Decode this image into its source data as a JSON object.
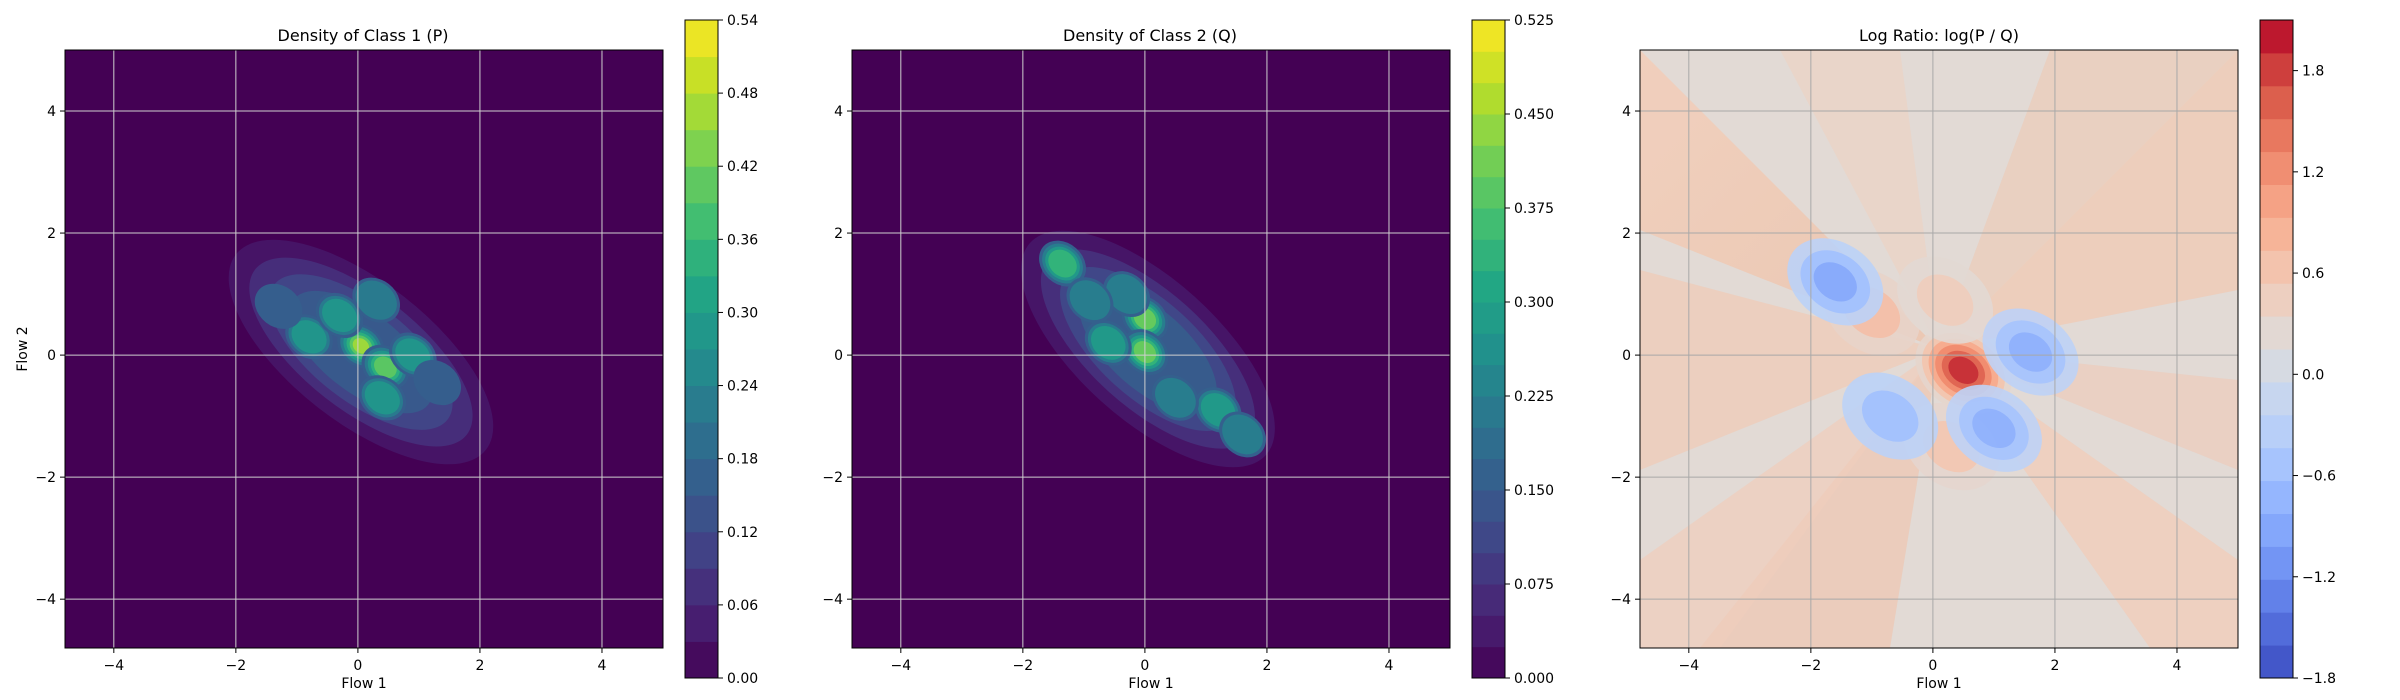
{
  "chart_data": [
    {
      "type": "heatmap",
      "title": "Density of Class 1 (P)",
      "xlabel": "Flow 1",
      "ylabel": "Flow 2",
      "xlim": [
        -4.8,
        5.0
      ],
      "ylim": [
        -4.8,
        5.0
      ],
      "xticks": [
        -4,
        -2,
        0,
        2,
        4
      ],
      "yticks": [
        -4,
        -2,
        0,
        2,
        4
      ],
      "grid": true,
      "colormap": "viridis",
      "levels": 18,
      "colorbar": {
        "min": 0.0,
        "max": 0.54,
        "ticks": [
          "0.00",
          "0.06",
          "0.12",
          "0.18",
          "0.24",
          "0.30",
          "0.36",
          "0.42",
          "0.48",
          "0.54"
        ]
      },
      "density_peaks": [
        {
          "x": 0.05,
          "y": 0.15,
          "value": 0.5
        },
        {
          "x": 0.45,
          "y": -0.2,
          "value": 0.45
        },
        {
          "x": -0.8,
          "y": 0.3,
          "value": 0.32
        },
        {
          "x": -0.3,
          "y": 0.65,
          "value": 0.3
        },
        {
          "x": 0.9,
          "y": 0.0,
          "value": 0.28
        },
        {
          "x": 0.4,
          "y": -0.7,
          "value": 0.28
        },
        {
          "x": 1.3,
          "y": -0.45,
          "value": 0.2
        },
        {
          "x": -1.3,
          "y": 0.8,
          "value": 0.18
        },
        {
          "x": 0.3,
          "y": 0.9,
          "value": 0.26
        }
      ]
    },
    {
      "type": "heatmap",
      "title": "Density of Class 2 (Q)",
      "xlabel": "Flow 1",
      "ylabel": "",
      "xlim": [
        -4.8,
        5.0
      ],
      "ylim": [
        -4.8,
        5.0
      ],
      "xticks": [
        -4,
        -2,
        0,
        2,
        4
      ],
      "yticks": [
        -4,
        -2,
        0,
        2,
        4
      ],
      "grid": true,
      "colormap": "viridis",
      "levels": 21,
      "colorbar": {
        "min": 0.0,
        "max": 0.525,
        "ticks": [
          "0.000",
          "0.075",
          "0.150",
          "0.225",
          "0.300",
          "0.375",
          "0.450",
          "0.525"
        ]
      },
      "density_peaks": [
        {
          "x": -1.35,
          "y": 1.5,
          "value": 0.35
        },
        {
          "x": 0.0,
          "y": 0.6,
          "value": 0.45
        },
        {
          "x": 0.0,
          "y": 0.05,
          "value": 0.42
        },
        {
          "x": -0.6,
          "y": 0.2,
          "value": 0.3
        },
        {
          "x": 1.2,
          "y": -0.9,
          "value": 0.3
        },
        {
          "x": 0.5,
          "y": -0.7,
          "value": 0.26
        },
        {
          "x": -0.3,
          "y": 1.0,
          "value": 0.25
        },
        {
          "x": 1.6,
          "y": -1.3,
          "value": 0.22
        },
        {
          "x": -0.9,
          "y": 0.9,
          "value": 0.22
        }
      ]
    },
    {
      "type": "heatmap",
      "title": "Log Ratio: log(P / Q)",
      "xlabel": "Flow 1",
      "ylabel": "",
      "xlim": [
        -4.8,
        5.0
      ],
      "ylim": [
        -4.8,
        5.0
      ],
      "xticks": [
        -4,
        -2,
        0,
        2,
        4
      ],
      "yticks": [
        -4,
        -2,
        0,
        2,
        4
      ],
      "grid": true,
      "colormap": "coolwarm",
      "colorbar": {
        "min": -1.8,
        "max": 2.1,
        "ticks": [
          "−1.8",
          "−1.2",
          "−0.6",
          "0.0",
          "0.6",
          "1.2",
          "1.8"
        ]
      },
      "regions": [
        {
          "x": 0.5,
          "y": -0.25,
          "value": 1.9
        },
        {
          "x": -1.0,
          "y": 0.7,
          "value": 0.7
        },
        {
          "x": 0.2,
          "y": 0.9,
          "value": 0.5
        },
        {
          "x": 0.3,
          "y": -1.5,
          "value": 0.6
        },
        {
          "x": -1.6,
          "y": 1.2,
          "value": -0.9
        },
        {
          "x": 1.6,
          "y": 0.05,
          "value": -0.8
        },
        {
          "x": 1.0,
          "y": -1.2,
          "value": -0.8
        },
        {
          "x": -0.7,
          "y": -1.0,
          "value": -0.6
        }
      ]
    }
  ]
}
